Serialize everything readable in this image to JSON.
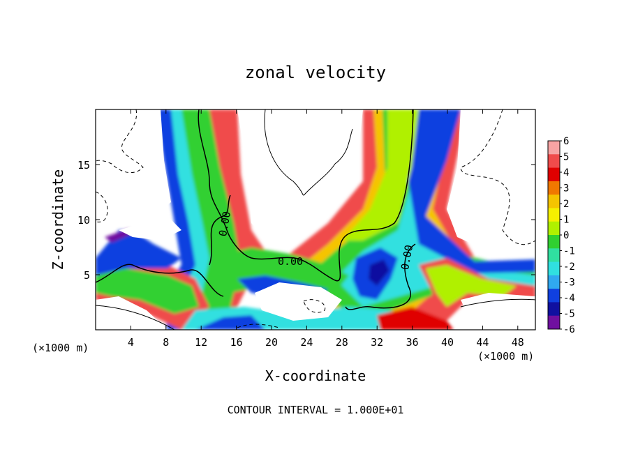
{
  "chart_data": {
    "type": "heatmap",
    "title": "zonal velocity",
    "xlabel": "X-coordinate",
    "ylabel": "Z-coordinate",
    "x_unit_label": "(×1000 m)",
    "x_unit_label_right": "(×1000 m)",
    "footer": "CONTOUR INTERVAL = 1.000E+01",
    "xlim": [
      0,
      50
    ],
    "ylim": [
      0,
      20
    ],
    "x_ticks": [
      "4",
      "8",
      "12",
      "16",
      "20",
      "24",
      "28",
      "32",
      "36",
      "40",
      "44",
      "48"
    ],
    "y_ticks": [
      "5",
      "10",
      "15"
    ],
    "contour_labels": [
      "0.00",
      "0.00",
      "0.00"
    ],
    "colorbar": {
      "levels": [
        "6",
        "5",
        "4",
        "3",
        "2",
        "1",
        "0",
        "-1",
        "-2",
        "-3",
        "-4",
        "-5",
        "-6"
      ],
      "colors": [
        "#f7a4a4",
        "#f04b4b",
        "#e00000",
        "#f07800",
        "#f5c400",
        "#f5f000",
        "#b0f000",
        "#30d030",
        "#30e0a0",
        "#30e0e0",
        "#30a8f0",
        "#1040e0",
        "#1010a0",
        "#7010a0"
      ]
    },
    "grid": "none",
    "legend": "colorbar-right"
  }
}
